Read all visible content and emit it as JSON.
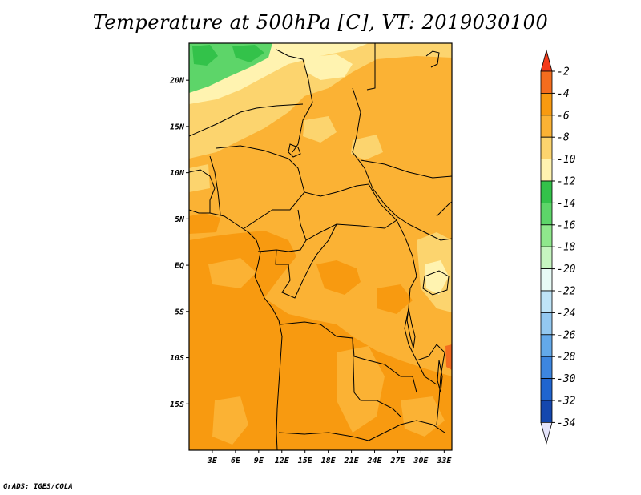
{
  "title": "Temperature at 500hPa [C], VT: 2019030100",
  "credit": "GrADS: IGES/COLA",
  "map": {
    "variable": "Temperature at 500hPa",
    "units": "C",
    "valid_time": "2019030100",
    "lon_range": [
      0,
      34
    ],
    "lat_range": [
      -20,
      24
    ],
    "lat_ticks": [
      {
        "value": 20,
        "label": "20N"
      },
      {
        "value": 15,
        "label": "15N"
      },
      {
        "value": 10,
        "label": "10N"
      },
      {
        "value": 5,
        "label": "5N"
      },
      {
        "value": 0,
        "label": "EQ"
      },
      {
        "value": -5,
        "label": "5S"
      },
      {
        "value": -10,
        "label": "10S"
      },
      {
        "value": -15,
        "label": "15S"
      }
    ],
    "lon_ticks": [
      {
        "value": 3,
        "label": "3E"
      },
      {
        "value": 6,
        "label": "6E"
      },
      {
        "value": 9,
        "label": "9E"
      },
      {
        "value": 12,
        "label": "12E"
      },
      {
        "value": 15,
        "label": "15E"
      },
      {
        "value": 18,
        "label": "18E"
      },
      {
        "value": 21,
        "label": "21E"
      },
      {
        "value": 24,
        "label": "24E"
      },
      {
        "value": 27,
        "label": "27E"
      },
      {
        "value": 30,
        "label": "30E"
      },
      {
        "value": 33,
        "label": "33E"
      }
    ]
  },
  "colorbar": {
    "levels": [
      {
        "label": "-2",
        "color": "#f46d1e"
      },
      {
        "label": "-4",
        "color": "#f89a10"
      },
      {
        "label": "-6",
        "color": "#fbb234"
      },
      {
        "label": "-8",
        "color": "#fcd46e"
      },
      {
        "label": "-10",
        "color": "#fff3b0"
      },
      {
        "label": "-12",
        "color": "#33c24a"
      },
      {
        "label": "-14",
        "color": "#5dd569"
      },
      {
        "label": "-16",
        "color": "#8fe88c"
      },
      {
        "label": "-18",
        "color": "#c6f5c0"
      },
      {
        "label": "-20",
        "color": "#e8fbf6"
      },
      {
        "label": "-22",
        "color": "#bfe4f7"
      },
      {
        "label": "-24",
        "color": "#93c8f0"
      },
      {
        "label": "-26",
        "color": "#63a9ea"
      },
      {
        "label": "-28",
        "color": "#3d86e0"
      },
      {
        "label": "-30",
        "color": "#2065cf"
      },
      {
        "label": "-32",
        "color": "#1447ae"
      },
      {
        "label": "-34",
        "color": "#0c1c78"
      }
    ],
    "top_arrow_color": "#f33a1a",
    "bottom_arrow_color": "#e5e4fb"
  }
}
